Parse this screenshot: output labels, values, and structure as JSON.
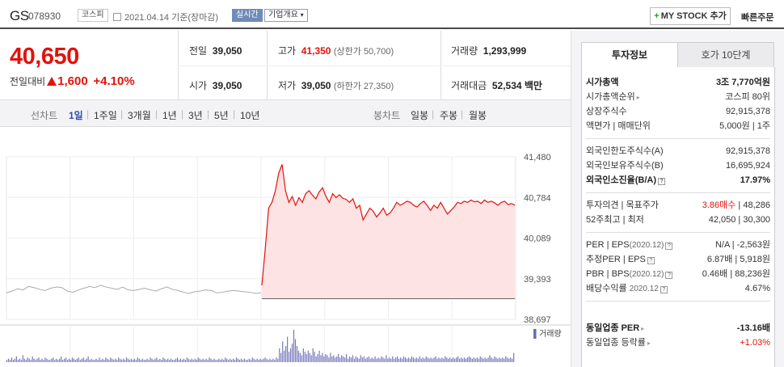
{
  "header": {
    "name": "GS",
    "code": "078930",
    "market": "코스피",
    "date": "2021.04.14 기준(장마감)",
    "realtime": "실시간",
    "corp_info": "기업개요",
    "mystock_button": "MY STOCK 추가",
    "quick_order": "빠른주문"
  },
  "price": {
    "current": "40,650",
    "change_label": "전일대비",
    "change": "1,600",
    "change_pct": "+4.10%",
    "prev_label": "전일",
    "prev": "39,050",
    "open_label": "시가",
    "open": "39,050",
    "high_label": "고가",
    "high": "41,350",
    "upper_limit": "(상한가 50,700)",
    "low_label": "저가",
    "low": "39,050",
    "lower_limit": "(하한가 27,350)",
    "volume_label": "거래량",
    "volume": "1,293,999",
    "amount_label": "거래대금",
    "amount": "52,534 백만"
  },
  "period_bar": {
    "line_label": "선차트",
    "line_options": [
      "1일",
      "1주일",
      "3개월",
      "1년",
      "3년",
      "5년",
      "10년"
    ],
    "selected": "1일",
    "candle_label": "봉차트",
    "candle_options": [
      "일봉",
      "주봉",
      "월봉"
    ]
  },
  "chart_data": {
    "type": "area",
    "title": "",
    "ylim": [
      38697,
      41480
    ],
    "y_ticks": [
      "41,480",
      "40,784",
      "40,089",
      "39,393",
      "38,697"
    ],
    "legend": "거래량",
    "grid": true,
    "series": [
      {
        "name": "",
        "values": [
          39150,
          39180,
          39220,
          39200,
          39260,
          39240,
          39210,
          39190,
          39230,
          39250,
          39240,
          39180,
          39160,
          39200,
          39230,
          39260,
          39240,
          39280,
          39250,
          39230,
          39210,
          39250,
          39200,
          39190,
          39210,
          39230,
          39200,
          39180,
          39220,
          39250,
          39210,
          39190,
          39160,
          39140,
          39170,
          39180,
          39200,
          39190,
          39150,
          39160,
          39180,
          39190,
          39180,
          39170,
          39160,
          39140,
          39150
        ]
      },
      {
        "name": "",
        "values": [
          39280,
          39900,
          40600,
          40700,
          40900,
          41200,
          41350,
          40900,
          40700,
          40800,
          40650,
          40780,
          40700,
          40850,
          40900,
          40820,
          40760,
          40880,
          40950,
          40800,
          40700,
          40850,
          40780,
          40830,
          40770,
          40750,
          40700,
          40760,
          40600,
          40650,
          40400,
          40500,
          40600,
          40550,
          40450,
          40520,
          40600,
          40480,
          40520,
          40600,
          40700,
          40650,
          40680,
          40720,
          40700,
          40650,
          40620,
          40680,
          40720,
          40650,
          40560,
          40650,
          40600,
          40700,
          40600,
          40500,
          40560,
          40620,
          40700,
          40680,
          40720,
          40700,
          40740,
          40710,
          40720,
          40680,
          40740,
          40700,
          40720,
          40690,
          40650,
          40700,
          40720,
          40660,
          40680,
          40650
        ]
      }
    ],
    "volume": [
      2,
      3,
      2,
      4,
      2,
      3,
      5,
      2,
      3,
      2,
      6,
      3,
      2,
      4,
      3,
      2,
      5,
      3,
      2,
      3,
      4,
      2,
      3,
      2,
      4,
      3,
      2,
      2,
      3,
      4,
      2,
      3,
      2,
      3,
      5,
      2,
      3,
      4,
      2,
      3,
      2,
      4,
      3,
      2,
      3,
      4,
      2,
      3,
      4,
      2,
      3,
      5,
      2,
      3,
      2,
      2,
      3,
      2,
      4,
      2,
      3,
      2,
      4,
      3,
      2,
      4,
      3,
      2,
      3,
      2,
      4,
      3,
      2,
      3,
      2,
      4,
      3,
      2,
      3,
      2,
      3,
      2,
      4,
      3,
      2,
      3,
      2,
      2,
      3,
      2,
      4,
      3,
      2,
      3,
      4,
      2,
      3,
      2,
      4,
      3,
      2,
      3,
      2,
      3,
      2,
      2,
      3,
      4,
      2,
      3,
      2,
      3,
      2,
      4,
      3,
      2,
      3,
      2,
      3,
      2,
      4,
      3,
      2,
      3,
      2,
      3,
      2,
      4,
      3,
      2,
      3,
      2,
      2,
      3,
      2,
      3,
      2,
      4,
      3,
      2,
      3,
      2,
      3,
      2,
      4,
      3,
      2,
      3,
      2,
      3,
      2,
      2,
      3,
      2,
      4,
      3,
      2,
      3,
      2,
      3,
      2,
      3,
      4,
      3,
      2,
      3,
      2,
      3,
      2,
      4,
      3,
      12,
      8,
      18,
      10,
      14,
      22,
      9,
      12,
      16,
      28,
      20,
      14,
      10,
      8,
      6,
      12,
      9,
      7,
      10,
      8,
      6,
      12,
      9,
      5,
      7,
      10,
      6,
      8,
      5,
      7,
      6,
      4,
      8,
      5,
      6,
      4,
      5,
      7,
      4,
      6,
      5,
      4,
      7,
      3,
      5,
      4,
      6,
      3,
      5,
      4,
      3,
      6,
      4,
      5,
      3,
      4,
      5,
      3,
      4,
      3,
      5,
      3,
      4,
      3,
      5,
      4,
      3,
      6,
      3,
      4,
      3,
      5,
      3,
      4,
      5,
      3,
      4,
      3,
      5,
      4,
      3,
      4,
      3,
      5,
      4,
      3,
      4,
      3,
      5,
      3,
      4,
      3,
      5,
      4,
      3,
      4,
      3,
      4,
      5,
      3,
      4,
      3,
      4,
      3,
      5,
      4,
      3,
      4,
      3,
      4,
      3,
      4,
      5,
      3,
      4,
      3,
      4,
      3,
      4,
      5,
      4,
      3,
      4,
      3,
      4,
      3,
      5,
      4,
      3,
      4,
      3,
      4,
      6,
      4,
      3,
      5,
      4,
      3,
      4,
      3,
      4,
      3,
      5,
      4,
      3,
      4,
      3,
      8
    ]
  },
  "right_panel": {
    "tabs": [
      "투자정보",
      "호가 10단계"
    ],
    "market_cap_label": "시가총액",
    "market_cap": "3조 7,770억원",
    "market_cap_rank_label": "시가총액순위",
    "market_cap_rank": "코스피 80위",
    "listed_shares_label": "상장주식수",
    "listed_shares": "92,915,378",
    "par_label": "액면가 | 매매단위",
    "par": "5,000원 | 1주",
    "foreign_limit_label": "외국인한도주식수(A)",
    "foreign_limit": "92,915,378",
    "foreign_hold_label": "외국인보유주식수(B)",
    "foreign_hold": "16,695,924",
    "foreign_ratio_label": "외국인소진율(B/A)",
    "foreign_ratio": "17.97%",
    "opinion_label": "투자의견 | 목표주가",
    "opinion": "3.86매수",
    "target": "48,286",
    "week52_label": "52주최고 | 최저",
    "week52": "42,050 | 30,300",
    "per_label": "PER | EPS",
    "per_date": "(2020.12)",
    "per": "N/A | -2,563원",
    "est_per_label": "추정PER | EPS",
    "est_per": "6.87배 | 5,918원",
    "pbr_label": "PBR | BPS",
    "pbr_date": "(2020.12)",
    "pbr": "0.46배 | 88,236원",
    "div_label": "배당수익률",
    "div_date": "2020.12",
    "div": "4.67%",
    "sector_per_label": "동일업종 PER",
    "sector_per": "-13.16배",
    "sector_change_label": "동일업종 등락률",
    "sector_change": "+1.03%"
  }
}
